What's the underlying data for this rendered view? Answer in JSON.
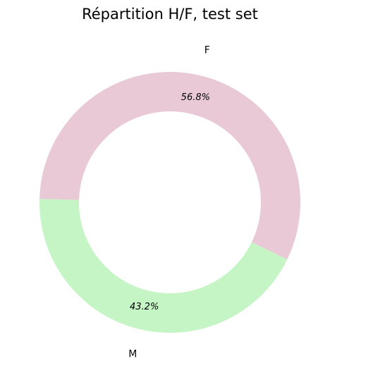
{
  "chart_data": {
    "type": "pie",
    "title": "Répartition H/F, test set",
    "donut": true,
    "categories": [
      "F",
      "M"
    ],
    "values": [
      56.8,
      43.2
    ],
    "percent_labels": [
      "56.8%",
      "43.2%"
    ],
    "colors": [
      "#e9c9d6",
      "#c5f4c5"
    ],
    "legend": "none"
  }
}
